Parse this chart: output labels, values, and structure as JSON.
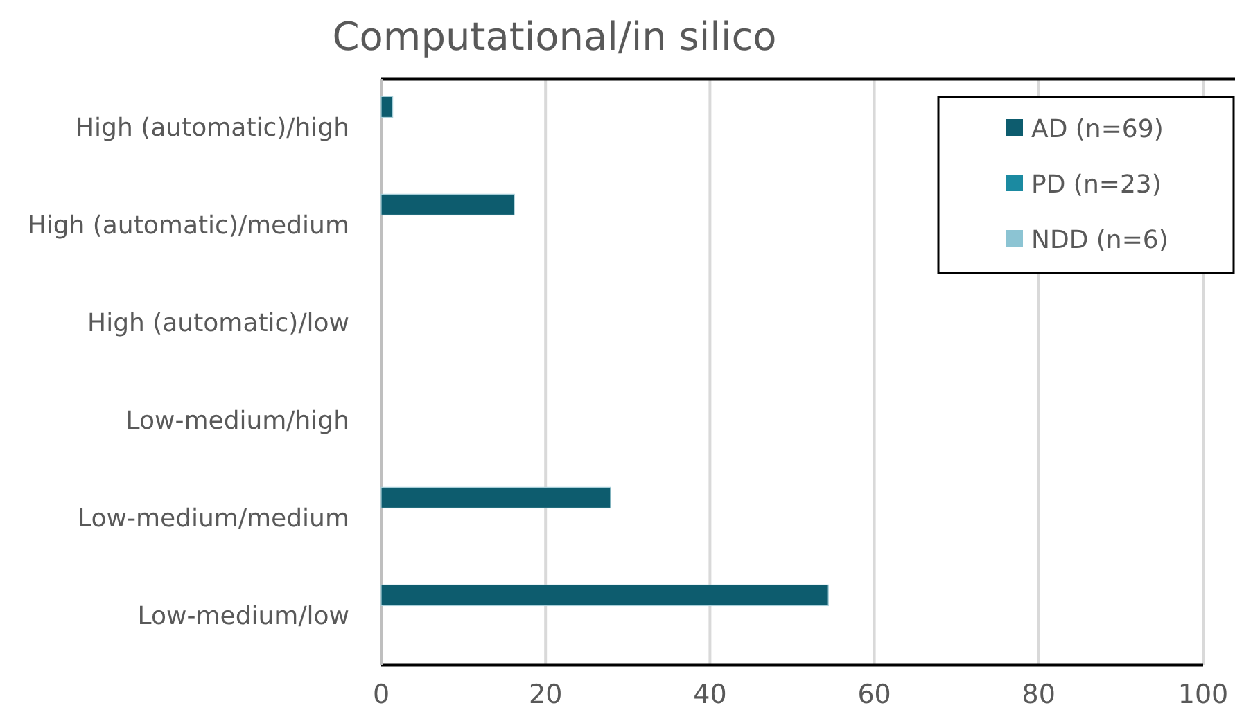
{
  "chart_data": {
    "type": "bar",
    "orientation": "horizontal",
    "title": "Computational/in silico",
    "categories": [
      "High (automatic)/high",
      "High (automatic)/medium",
      "High (automatic)/low",
      "Low-medium/high",
      "Low-medium/medium",
      "Low-medium/low"
    ],
    "series": [
      {
        "name": "AD (n=69)",
        "color": "#0d5c6e",
        "values": [
          1.4,
          16.2,
          0,
          0,
          27.9,
          54.4
        ]
      },
      {
        "name": "PD (n=23)",
        "color": "#1b8aa1",
        "values": [
          0,
          0,
          0,
          0,
          0,
          0
        ]
      },
      {
        "name": "NDD (n=6)",
        "color": "#8cc4d3",
        "values": [
          0,
          0,
          0,
          0,
          0,
          0
        ]
      }
    ],
    "xlim": [
      0,
      100
    ],
    "xticks": [
      0,
      20,
      40,
      60,
      80,
      100
    ],
    "grid": "x",
    "legend": "top right"
  }
}
